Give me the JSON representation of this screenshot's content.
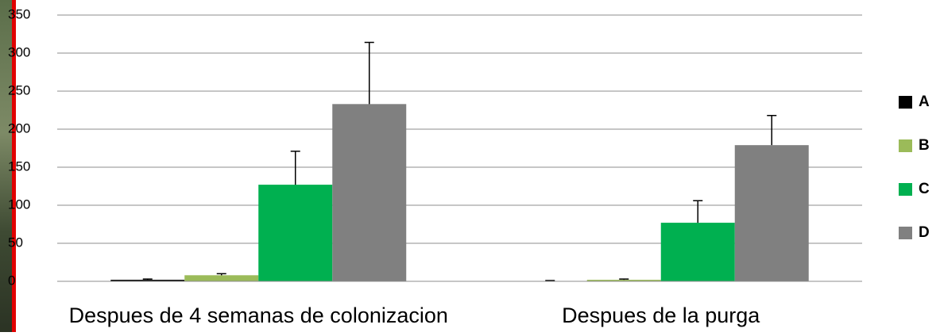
{
  "chart_data": {
    "type": "bar",
    "categories": [
      "Despues de 4 semanas de colonizacion",
      "Despues de la purga"
    ],
    "series": [
      {
        "name": "A",
        "color": "#000000",
        "values": [
          2,
          0.5
        ],
        "errors": [
          1,
          0.5
        ]
      },
      {
        "name": "B",
        "color": "#9bbb59",
        "values": [
          8,
          2
        ],
        "errors": [
          2,
          1
        ]
      },
      {
        "name": "C",
        "color": "#00b050",
        "values": [
          127,
          77
        ],
        "errors": [
          44,
          29
        ]
      },
      {
        "name": "D",
        "color": "#808080",
        "values": [
          233,
          179
        ],
        "errors": [
          81,
          39
        ]
      }
    ],
    "ylim": [
      0,
      350
    ],
    "yticks": [
      0,
      50,
      100,
      150,
      200,
      250,
      300,
      350
    ],
    "grid": true,
    "legend": "right"
  }
}
